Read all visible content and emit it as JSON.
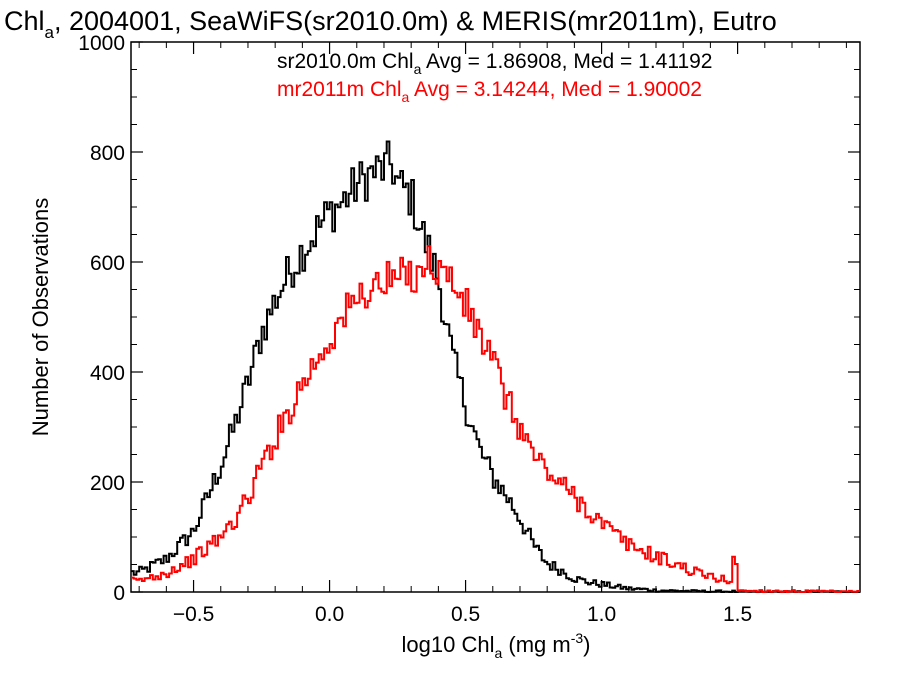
{
  "chart_data": {
    "type": "line",
    "title": {
      "main": "Chl",
      "sub": "a",
      "rest": ", 2004001, SeaWiFS(sr2010.0m) & MERIS(mr2011m), Eutro"
    },
    "xlabel": {
      "main": "log10 Chl",
      "sub": "a",
      "rest": " (mg m",
      "sup": "-3",
      "end": ")"
    },
    "ylabel": "Number of Observations",
    "xlim": [
      -0.73,
      1.95
    ],
    "ylim": [
      0,
      1000
    ],
    "x_ticks": [
      {
        "value": -0.5,
        "label": "−0.5"
      },
      {
        "value": 0.0,
        "label": "0.0"
      },
      {
        "value": 0.5,
        "label": "0.5"
      },
      {
        "value": 1.0,
        "label": "1.0"
      },
      {
        "value": 1.5,
        "label": "1.5"
      }
    ],
    "y_ticks": [
      {
        "value": 0,
        "label": "0"
      },
      {
        "value": 200,
        "label": "200"
      },
      {
        "value": 400,
        "label": "400"
      },
      {
        "value": 600,
        "label": "600"
      },
      {
        "value": 800,
        "label": "800"
      },
      {
        "value": 1000,
        "label": "1000"
      }
    ],
    "grid": false,
    "legend_position": "top-right",
    "series": [
      {
        "name": "sr2010.0m",
        "color": "#000000",
        "stats": {
          "pre": "sr2010.0m Chl",
          "sub": "a",
          "post": " Avg = 1.86908, Med = 1.41192"
        },
        "x": [
          -0.7,
          -0.6,
          -0.5,
          -0.45,
          -0.4,
          -0.35,
          -0.3,
          -0.25,
          -0.2,
          -0.15,
          -0.1,
          -0.05,
          0.0,
          0.05,
          0.1,
          0.15,
          0.2,
          0.23,
          0.25,
          0.3,
          0.35,
          0.4,
          0.45,
          0.5,
          0.55,
          0.6,
          0.65,
          0.7,
          0.75,
          0.8,
          0.85,
          0.9,
          0.95,
          1.0,
          1.05,
          1.1,
          1.15,
          1.2,
          1.3,
          1.4,
          1.48,
          1.6,
          1.8,
          1.95
        ],
        "y": [
          35,
          60,
          110,
          170,
          230,
          300,
          380,
          470,
          530,
          580,
          620,
          655,
          690,
          710,
          740,
          760,
          770,
          780,
          740,
          720,
          640,
          570,
          430,
          340,
          260,
          210,
          175,
          135,
          85,
          52,
          40,
          25,
          18,
          14,
          10,
          6,
          5,
          3,
          2,
          1,
          1,
          0,
          0,
          0
        ]
      },
      {
        "name": "mr2011m",
        "color": "#ff0000",
        "stats": {
          "pre": "mr2011m Chl",
          "sub": "a",
          "post": " Avg = 3.14244, Med = 1.90002"
        },
        "x": [
          -0.7,
          -0.6,
          -0.5,
          -0.45,
          -0.4,
          -0.35,
          -0.3,
          -0.25,
          -0.2,
          -0.15,
          -0.1,
          -0.05,
          0.0,
          0.05,
          0.1,
          0.15,
          0.2,
          0.25,
          0.3,
          0.35,
          0.4,
          0.45,
          0.5,
          0.55,
          0.6,
          0.65,
          0.7,
          0.75,
          0.8,
          0.85,
          0.9,
          0.95,
          1.0,
          1.05,
          1.1,
          1.15,
          1.2,
          1.25,
          1.3,
          1.35,
          1.4,
          1.45,
          1.48,
          1.49,
          1.5,
          1.6,
          1.8,
          1.95
        ],
        "y": [
          20,
          35,
          60,
          80,
          100,
          130,
          170,
          230,
          280,
          330,
          380,
          420,
          460,
          500,
          530,
          555,
          560,
          570,
          575,
          600,
          590,
          565,
          520,
          470,
          420,
          350,
          300,
          250,
          220,
          195,
          175,
          150,
          125,
          105,
          85,
          75,
          65,
          55,
          45,
          35,
          28,
          22,
          20,
          110,
          2,
          2,
          1,
          0
        ]
      }
    ]
  }
}
